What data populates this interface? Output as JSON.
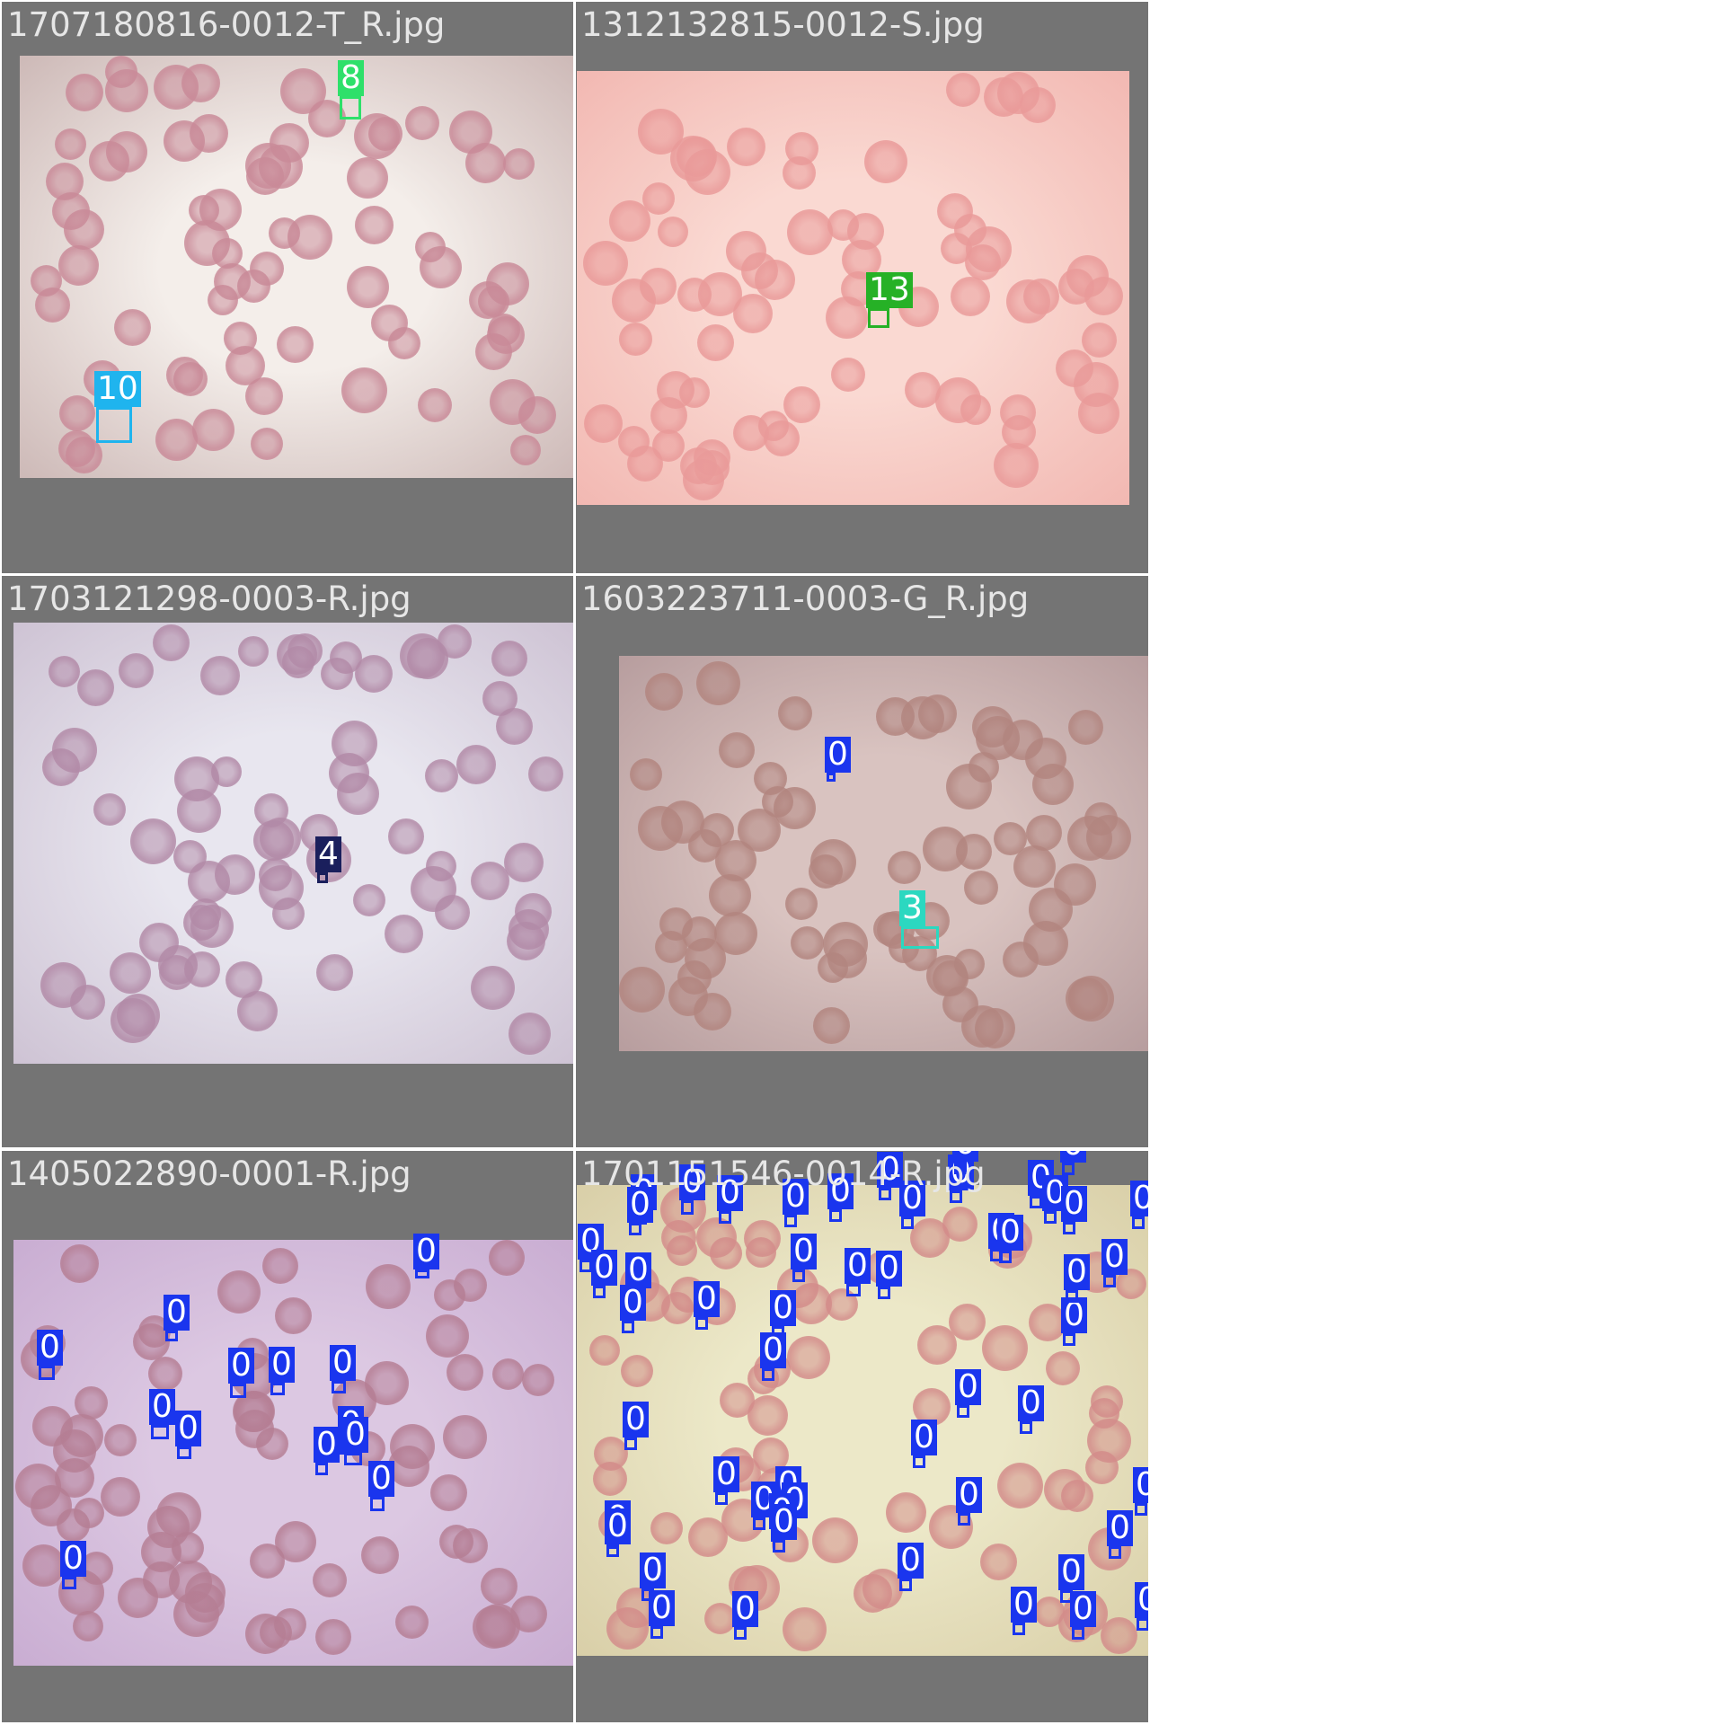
{
  "panels": [
    {
      "filename": "1707180816-0012-T_R.jpg",
      "photo_tint": [
        "#f4eeea",
        "#cdb9b7"
      ],
      "cell_color": "#c98a98",
      "detections": [
        {
          "class_id": "8",
          "color": "#2ee06a"
        },
        {
          "class_id": "10",
          "color": "#1fb4ee"
        }
      ]
    },
    {
      "filename": "1312132815-0012-S.jpg",
      "photo_tint": [
        "#fad9d2",
        "#f2b8b2"
      ],
      "cell_color": "#e99a99",
      "detections": [
        {
          "class_id": "13",
          "color": "#26b126"
        }
      ]
    },
    {
      "filename": "1703121298-0003-R.jpg",
      "photo_tint": [
        "#e8e6ef",
        "#cec3d4"
      ],
      "cell_color": "#b28aa7",
      "detections": [
        {
          "class_id": "4",
          "color": "#1a1f5c"
        }
      ]
    },
    {
      "filename": "1603223711-0003-G_R.jpg",
      "photo_tint": [
        "#d9c3c0",
        "#b79d9e"
      ],
      "cell_color": "#b2857f",
      "detections": [
        {
          "class_id": "0",
          "color": "#1a35ee"
        },
        {
          "class_id": "3",
          "color": "#2bd8c0"
        }
      ]
    },
    {
      "filename": "1405022890-0001-R.jpg",
      "photo_tint": [
        "#dcc8e2",
        "#c9add2"
      ],
      "cell_color": "#b57e94",
      "detections": [
        {
          "class_id": "0",
          "color": "#1a35ee"
        },
        {
          "class_id": "0",
          "color": "#1a35ee"
        },
        {
          "class_id": "0",
          "color": "#1a35ee"
        },
        {
          "class_id": "0",
          "color": "#1a35ee"
        },
        {
          "class_id": "0",
          "color": "#1a35ee"
        },
        {
          "class_id": "0",
          "color": "#1a35ee"
        },
        {
          "class_id": "0",
          "color": "#1a35ee"
        },
        {
          "class_id": "0",
          "color": "#1a35ee"
        },
        {
          "class_id": "0",
          "color": "#1a35ee"
        },
        {
          "class_id": "0",
          "color": "#1a35ee"
        },
        {
          "class_id": "0",
          "color": "#1a35ee"
        },
        {
          "class_id": "0",
          "color": "#1a35ee"
        },
        {
          "class_id": "0",
          "color": "#1a35ee"
        }
      ]
    },
    {
      "filename": "1701151546-0014-R.jpg",
      "photo_tint": [
        "#ece8c8",
        "#d9cfa8"
      ],
      "cell_color": "#d38c8a",
      "detections": [
        {
          "class_id": "0",
          "color": "#1a35ee"
        },
        {
          "class_id": "0",
          "color": "#1a35ee"
        },
        {
          "class_id": "0",
          "color": "#1a35ee"
        },
        {
          "class_id": "0",
          "color": "#1a35ee"
        },
        {
          "class_id": "0",
          "color": "#1a35ee"
        },
        {
          "class_id": "0",
          "color": "#1a35ee"
        },
        {
          "class_id": "0",
          "color": "#1a35ee"
        },
        {
          "class_id": "0",
          "color": "#1a35ee"
        },
        {
          "class_id": "0",
          "color": "#1a35ee"
        },
        {
          "class_id": "0",
          "color": "#1a35ee"
        },
        {
          "class_id": "0",
          "color": "#1a35ee"
        },
        {
          "class_id": "0",
          "color": "#1a35ee"
        },
        {
          "class_id": "0",
          "color": "#1a35ee"
        },
        {
          "class_id": "0",
          "color": "#1a35ee"
        },
        {
          "class_id": "0",
          "color": "#1a35ee"
        },
        {
          "class_id": "0",
          "color": "#1a35ee"
        },
        {
          "class_id": "0",
          "color": "#1a35ee"
        },
        {
          "class_id": "0",
          "color": "#1a35ee"
        },
        {
          "class_id": "0",
          "color": "#1a35ee"
        },
        {
          "class_id": "0",
          "color": "#1a35ee"
        },
        {
          "class_id": "0",
          "color": "#1a35ee"
        },
        {
          "class_id": "0",
          "color": "#1a35ee"
        },
        {
          "class_id": "0",
          "color": "#1a35ee"
        },
        {
          "class_id": "0",
          "color": "#1a35ee"
        },
        {
          "class_id": "0",
          "color": "#1a35ee"
        },
        {
          "class_id": "0",
          "color": "#1a35ee"
        },
        {
          "class_id": "0",
          "color": "#1a35ee"
        },
        {
          "class_id": "0",
          "color": "#1a35ee"
        },
        {
          "class_id": "0",
          "color": "#1a35ee"
        },
        {
          "class_id": "0",
          "color": "#1a35ee"
        },
        {
          "class_id": "0",
          "color": "#1a35ee"
        },
        {
          "class_id": "0",
          "color": "#1a35ee"
        },
        {
          "class_id": "0",
          "color": "#1a35ee"
        },
        {
          "class_id": "0",
          "color": "#1a35ee"
        },
        {
          "class_id": "0",
          "color": "#1a35ee"
        },
        {
          "class_id": "0",
          "color": "#1a35ee"
        },
        {
          "class_id": "0",
          "color": "#1a35ee"
        },
        {
          "class_id": "0",
          "color": "#1a35ee"
        },
        {
          "class_id": "0",
          "color": "#1a35ee"
        },
        {
          "class_id": "0",
          "color": "#1a35ee"
        },
        {
          "class_id": "0",
          "color": "#1a35ee"
        },
        {
          "class_id": "0",
          "color": "#1a35ee"
        },
        {
          "class_id": "0",
          "color": "#1a35ee"
        },
        {
          "class_id": "0",
          "color": "#1a35ee"
        },
        {
          "class_id": "0",
          "color": "#1a35ee"
        },
        {
          "class_id": "0",
          "color": "#1a35ee"
        },
        {
          "class_id": "0",
          "color": "#1a35ee"
        },
        {
          "class_id": "0",
          "color": "#1a35ee"
        },
        {
          "class_id": "0",
          "color": "#1a35ee"
        },
        {
          "class_id": "0",
          "color": "#1a35ee"
        },
        {
          "class_id": "0",
          "color": "#1a35ee"
        },
        {
          "class_id": "0",
          "color": "#1a35ee"
        },
        {
          "class_id": "0",
          "color": "#1a35ee"
        }
      ]
    }
  ]
}
